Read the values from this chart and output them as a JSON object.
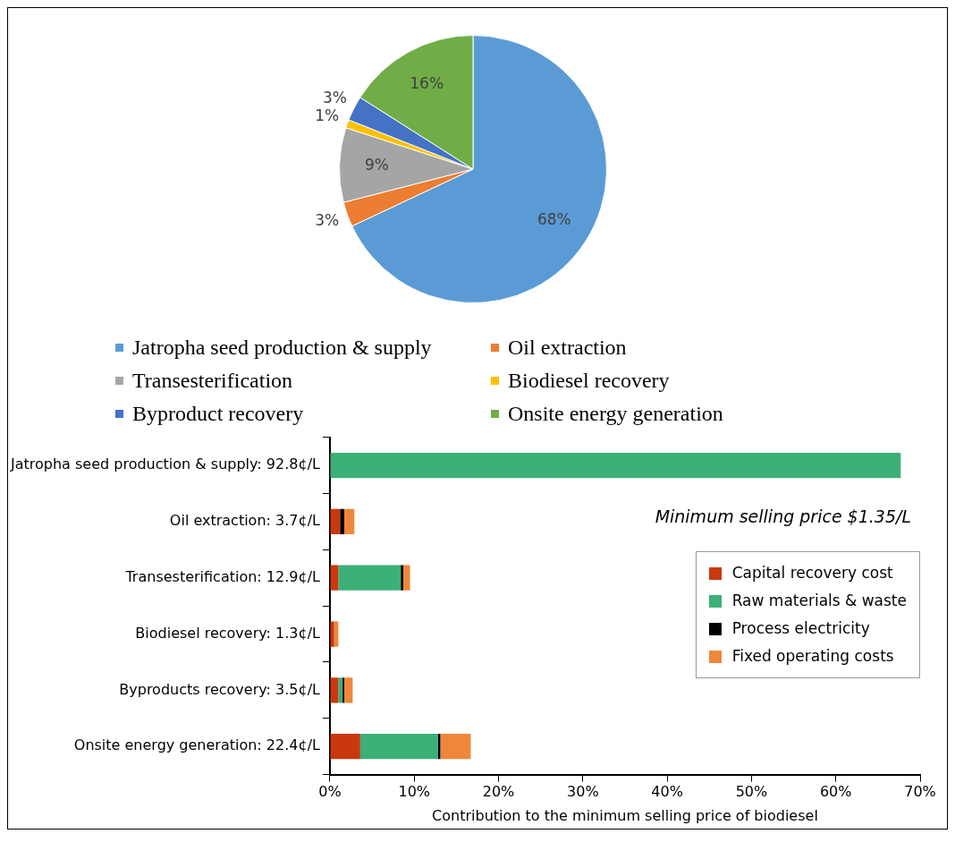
{
  "chart_data": [
    {
      "type": "pie",
      "categories": [
        "Jatropha seed production & supply",
        "Oil extraction",
        "Transesterification",
        "Biodiesel recovery",
        "Byproduct recovery",
        "Onsite energy generation"
      ],
      "values": [
        68,
        3,
        9,
        1,
        3,
        16
      ],
      "colors": [
        "#5b9bd5",
        "#ed7d31",
        "#a5a5a5",
        "#ffc000",
        "#4472c4",
        "#70ad47"
      ],
      "value_labels": [
        "68%",
        "3%",
        "9%",
        "1%",
        "3%",
        "16%"
      ],
      "legend": "bottom"
    },
    {
      "type": "bar",
      "orientation": "horizontal",
      "stacked": true,
      "categories": [
        "Jatropha seed production & supply: 92.8¢/L",
        "Oil extraction: 3.7¢/L",
        "Transesterification: 12.9¢/L",
        "Biodiesel recovery: 1.3¢/L",
        "Byproducts recovery: 3.5¢/L",
        "Onsite energy generation: 22.4¢/L"
      ],
      "series": [
        {
          "name": "Capital recovery cost",
          "color": "#c9380f",
          "values": [
            0,
            1.2,
            1.0,
            0.5,
            1.0,
            3.6
          ]
        },
        {
          "name": "Raw materials & waste",
          "color": "#3cb077",
          "values": [
            67.7,
            0,
            7.4,
            0,
            0.5,
            9.2
          ]
        },
        {
          "name": "Process electricity",
          "color": "#000000",
          "values": [
            0,
            0.5,
            0.3,
            0,
            0.2,
            0.3
          ]
        },
        {
          "name": "Fixed operating costs",
          "color": "#ef873b",
          "values": [
            0,
            1.2,
            0.8,
            0.5,
            1.0,
            3.6
          ]
        }
      ],
      "xlim": [
        0,
        70
      ],
      "xticks": [
        {
          "value": 0,
          "label": "0%"
        },
        {
          "value": 10,
          "label": "10%"
        },
        {
          "value": 20,
          "label": "20%"
        },
        {
          "value": 30,
          "label": "30%"
        },
        {
          "value": 40,
          "label": "40%"
        },
        {
          "value": 50,
          "label": "50%"
        },
        {
          "value": 60,
          "label": "60%"
        },
        {
          "value": 70,
          "label": "70%"
        }
      ],
      "xlabel": "Contribution to the minimum selling price of biodiesel",
      "annotations": [
        "Minimum selling price $1.35/L"
      ],
      "legend": "right",
      "grid": false
    }
  ]
}
